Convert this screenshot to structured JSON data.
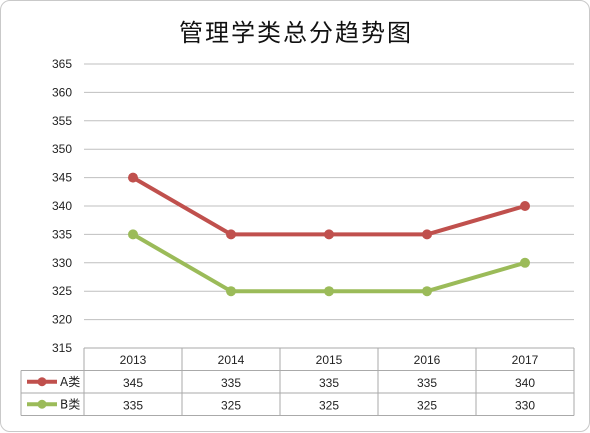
{
  "chart_data": {
    "type": "line",
    "title": "管理学类总分趋势图",
    "categories": [
      "2013",
      "2014",
      "2015",
      "2016",
      "2017"
    ],
    "series": [
      {
        "name": "A类",
        "values": [
          345,
          335,
          335,
          335,
          340
        ],
        "color": "#c0504d"
      },
      {
        "name": "B类",
        "values": [
          335,
          325,
          325,
          325,
          330
        ],
        "color": "#9bbb59"
      }
    ],
    "ylim": [
      315,
      365
    ],
    "yticks": [
      315,
      320,
      325,
      330,
      335,
      340,
      345,
      350,
      355,
      360,
      365
    ],
    "grid": true,
    "legend": "data table below plot",
    "data_table": true
  }
}
